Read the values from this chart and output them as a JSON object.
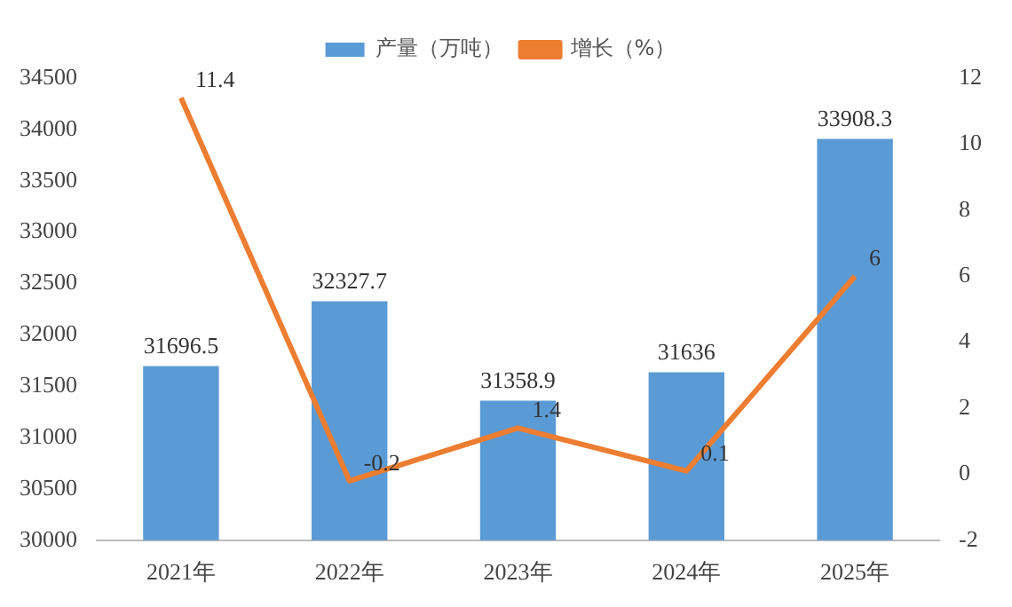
{
  "chart_data": {
    "type": "bar",
    "categories": [
      "2021年",
      "2022年",
      "2023年",
      "2024年",
      "2025年"
    ],
    "series": [
      {
        "name": "产量（万吨）",
        "color": "#5b9bd5",
        "values": [
          31696.5,
          32327.7,
          31358.9,
          31636,
          33908.3
        ]
      },
      {
        "name": "增长（%）",
        "type": "line",
        "axis": "y2",
        "color": "#ed7d31",
        "values": [
          11.4,
          -0.2,
          1.4,
          0.1,
          6
        ]
      }
    ],
    "ylim": [
      30000,
      34500
    ],
    "yticks": [
      30000,
      30500,
      31000,
      31500,
      32000,
      32500,
      33000,
      33500,
      34000,
      34500
    ],
    "y2lim": [
      -2,
      12
    ],
    "y2ticks": [
      -2,
      0,
      2,
      4,
      6,
      8,
      10,
      12
    ],
    "data_labels": true,
    "legend": "top",
    "grid": false,
    "marker": "none"
  }
}
